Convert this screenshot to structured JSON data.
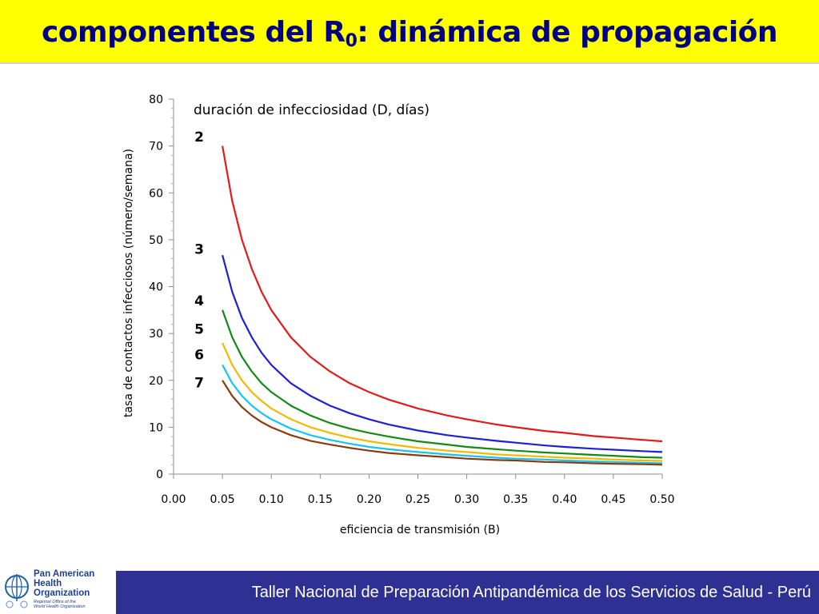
{
  "slide": {
    "title_main": "componentes del R",
    "title_sub": "0",
    "title_rest": ": dinámica de propagación"
  },
  "footer": {
    "org_lines": [
      "Pan American",
      "Health",
      "Organization"
    ],
    "org_sub_lines": [
      "Regional Office of the",
      "World Health Organization"
    ],
    "banner_text": "Taller Nacional de Preparación Antipandémica de los Servicios de Salud - Perú"
  },
  "chart_data": {
    "type": "line",
    "title": "",
    "legend_title": "duración de infecciosidad (D, días)",
    "xlabel": "eficiencia de transmisión (B)",
    "ylabel": "tasa de contactos infecciosos (número/semana)",
    "xlim": [
      0,
      0.5
    ],
    "ylim": [
      0,
      80
    ],
    "x_ticks": [
      "0.00",
      "0.05",
      "0.10",
      "0.15",
      "0.20",
      "0.25",
      "0.30",
      "0.35",
      "0.40",
      "0.45",
      "0.50"
    ],
    "y_ticks": [
      "0",
      "10",
      "20",
      "30",
      "40",
      "50",
      "60",
      "70",
      "80"
    ],
    "grid": false,
    "relationship": "y = 7 / (B * D)",
    "x": [
      0.05,
      0.06,
      0.07,
      0.08,
      0.09,
      0.1,
      0.12,
      0.14,
      0.16,
      0.18,
      0.2,
      0.22,
      0.25,
      0.28,
      0.3,
      0.33,
      0.35,
      0.38,
      0.4,
      0.43,
      0.45,
      0.48,
      0.5
    ],
    "series": [
      {
        "name": "2",
        "color": "#e31a1c",
        "values": [
          70.0,
          58.3,
          50.0,
          43.8,
          38.9,
          35.0,
          29.2,
          25.0,
          21.9,
          19.4,
          17.5,
          15.9,
          14.0,
          12.5,
          11.7,
          10.6,
          10.0,
          9.2,
          8.8,
          8.1,
          7.8,
          7.3,
          7.0
        ]
      },
      {
        "name": "3",
        "color": "#1f1fd6",
        "values": [
          46.7,
          38.9,
          33.3,
          29.2,
          25.9,
          23.3,
          19.4,
          16.7,
          14.6,
          13.0,
          11.7,
          10.6,
          9.3,
          8.3,
          7.8,
          7.1,
          6.7,
          6.1,
          5.8,
          5.4,
          5.2,
          4.9,
          4.7
        ]
      },
      {
        "name": "4",
        "color": "#138a13",
        "values": [
          35.0,
          29.2,
          25.0,
          21.9,
          19.4,
          17.5,
          14.6,
          12.5,
          10.9,
          9.7,
          8.8,
          8.0,
          7.0,
          6.3,
          5.8,
          5.3,
          5.0,
          4.6,
          4.4,
          4.1,
          3.9,
          3.6,
          3.5
        ]
      },
      {
        "name": "5",
        "color": "#f5b800",
        "values": [
          28.0,
          23.3,
          20.0,
          17.5,
          15.6,
          14.0,
          11.7,
          10.0,
          8.8,
          7.8,
          7.0,
          6.4,
          5.6,
          5.0,
          4.7,
          4.2,
          4.0,
          3.7,
          3.5,
          3.3,
          3.1,
          2.9,
          2.8
        ]
      },
      {
        "name": "6",
        "color": "#17c3f2",
        "values": [
          23.3,
          19.4,
          16.7,
          14.6,
          13.0,
          11.7,
          9.7,
          8.3,
          7.3,
          6.5,
          5.8,
          5.3,
          4.7,
          4.2,
          3.9,
          3.5,
          3.3,
          3.1,
          2.9,
          2.7,
          2.6,
          2.4,
          2.3
        ]
      },
      {
        "name": "7",
        "color": "#8b3a0f",
        "values": [
          20.0,
          16.7,
          14.3,
          12.5,
          11.1,
          10.0,
          8.3,
          7.1,
          6.3,
          5.6,
          5.0,
          4.5,
          4.0,
          3.6,
          3.3,
          3.0,
          2.9,
          2.6,
          2.5,
          2.3,
          2.2,
          2.1,
          2.0
        ]
      }
    ],
    "series_label_positions_y": [
      72,
      48,
      37,
      31,
      25.5,
      19.5
    ]
  }
}
